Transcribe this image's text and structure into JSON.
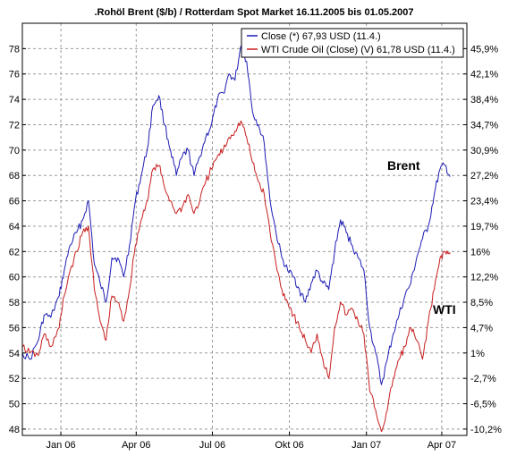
{
  "chart_data": {
    "type": "line",
    "title": ".Rohöl Brent ($/b) / Rotterdam Spot Market 16.11.2005 bis 01.05.2007",
    "xlabel": "",
    "ylabel": "",
    "x_tick_labels": [
      "Jan 06",
      "Apr 06",
      "Jul 06",
      "Okt 06",
      "Jan 07",
      "Apr 07"
    ],
    "x_ticks": [
      "2006-01-01",
      "2006-04-01",
      "2006-07-01",
      "2006-10-01",
      "2007-01-01",
      "2007-04-01"
    ],
    "x_range": [
      "2005-11-16",
      "2007-05-01"
    ],
    "ylim": [
      47.5,
      80
    ],
    "y_ticks": [
      48,
      50,
      52,
      54,
      56,
      58,
      60,
      62,
      64,
      66,
      68,
      70,
      72,
      74,
      76,
      78
    ],
    "y_tick_labels": [
      "48",
      "50",
      "52",
      "54",
      "56",
      "58",
      "60",
      "62",
      "64",
      "66",
      "68",
      "70",
      "72",
      "74",
      "76",
      "78"
    ],
    "right_axis": {
      "ticks": [
        -10.2,
        -6.5,
        -2.7,
        1,
        4.7,
        8.5,
        12.2,
        16,
        19.7,
        23.4,
        27.2,
        30.9,
        34.7,
        38.4,
        42.1,
        45.9
      ],
      "tick_labels": [
        "-10,2%",
        "-6,5%",
        "-2,7%",
        "1%",
        "4,7%",
        "8,5%",
        "12,2%",
        "16%",
        "19,7%",
        "23,4%",
        "27,2%",
        "30,9%",
        "34,7%",
        "38,4%",
        "42,1%",
        "45,9%"
      ]
    },
    "grid": true,
    "legend_position": "top-right",
    "legend": [
      "Close (*) 67,93 USD (11.4.)",
      "WTI Crude Oil (Close) (V) 61,78 USD (11.4.)"
    ],
    "annotations": [
      {
        "text": "Brent",
        "x": "2007-03-10",
        "y": 68.0
      },
      {
        "text": "WTI",
        "x": "2007-03-28",
        "y": 58.0
      }
    ],
    "series": [
      {
        "name": "Close (*)",
        "color": "#1c1cb4",
        "points": [
          [
            "2005-11-16",
            54.0
          ],
          [
            "2005-11-25",
            53.5
          ],
          [
            "2005-12-05",
            55.0
          ],
          [
            "2005-12-12",
            57.0
          ],
          [
            "2005-12-20",
            56.8
          ],
          [
            "2005-12-30",
            58.5
          ],
          [
            "2006-01-05",
            60.5
          ],
          [
            "2006-01-12",
            62.5
          ],
          [
            "2006-01-20",
            63.5
          ],
          [
            "2006-01-27",
            64.5
          ],
          [
            "2006-02-03",
            66.0
          ],
          [
            "2006-02-10",
            61.0
          ],
          [
            "2006-02-17",
            59.5
          ],
          [
            "2006-02-24",
            58.0
          ],
          [
            "2006-03-03",
            61.5
          ],
          [
            "2006-03-10",
            61.5
          ],
          [
            "2006-03-17",
            60.0
          ],
          [
            "2006-03-24",
            62.5
          ],
          [
            "2006-03-31",
            66.0
          ],
          [
            "2006-04-07",
            68.0
          ],
          [
            "2006-04-14",
            70.0
          ],
          [
            "2006-04-21",
            73.5
          ],
          [
            "2006-04-28",
            74.3
          ],
          [
            "2006-05-05",
            72.0
          ],
          [
            "2006-05-12",
            70.0
          ],
          [
            "2006-05-19",
            68.0
          ],
          [
            "2006-05-26",
            69.5
          ],
          [
            "2006-06-02",
            70.0
          ],
          [
            "2006-06-09",
            68.0
          ],
          [
            "2006-06-16",
            69.5
          ],
          [
            "2006-06-23",
            71.0
          ],
          [
            "2006-06-30",
            72.0
          ],
          [
            "2006-07-07",
            74.0
          ],
          [
            "2006-07-14",
            74.5
          ],
          [
            "2006-07-21",
            76.0
          ],
          [
            "2006-07-28",
            75.5
          ],
          [
            "2006-08-04",
            78.2
          ],
          [
            "2006-08-11",
            77.0
          ],
          [
            "2006-08-18",
            73.0
          ],
          [
            "2006-08-25",
            72.0
          ],
          [
            "2006-09-01",
            70.5
          ],
          [
            "2006-09-08",
            66.0
          ],
          [
            "2006-09-15",
            63.5
          ],
          [
            "2006-09-22",
            61.5
          ],
          [
            "2006-09-29",
            60.5
          ],
          [
            "2006-10-06",
            60.0
          ],
          [
            "2006-10-13",
            59.0
          ],
          [
            "2006-10-20",
            58.0
          ],
          [
            "2006-10-27",
            59.5
          ],
          [
            "2006-11-03",
            60.5
          ],
          [
            "2006-11-10",
            59.5
          ],
          [
            "2006-11-17",
            59.0
          ],
          [
            "2006-11-24",
            62.0
          ],
          [
            "2006-12-01",
            64.5
          ],
          [
            "2006-12-08",
            63.5
          ],
          [
            "2006-12-15",
            62.5
          ],
          [
            "2006-12-22",
            61.5
          ],
          [
            "2006-12-29",
            60.5
          ],
          [
            "2007-01-05",
            56.0
          ],
          [
            "2007-01-12",
            54.0
          ],
          [
            "2007-01-19",
            51.5
          ],
          [
            "2007-01-26",
            53.5
          ],
          [
            "2007-02-02",
            55.5
          ],
          [
            "2007-02-09",
            57.0
          ],
          [
            "2007-02-16",
            58.5
          ],
          [
            "2007-02-23",
            59.5
          ],
          [
            "2007-03-02",
            61.5
          ],
          [
            "2007-03-09",
            63.0
          ],
          [
            "2007-03-16",
            64.0
          ],
          [
            "2007-03-23",
            66.5
          ],
          [
            "2007-03-30",
            68.5
          ],
          [
            "2007-04-05",
            68.8
          ],
          [
            "2007-04-11",
            67.9
          ]
        ]
      },
      {
        "name": "WTI Crude Oil (Close) (V)",
        "color": "#c81e1e",
        "points": [
          [
            "2005-11-16",
            54.5
          ],
          [
            "2005-11-25",
            54.0
          ],
          [
            "2005-12-05",
            53.8
          ],
          [
            "2005-12-12",
            55.5
          ],
          [
            "2005-12-20",
            54.5
          ],
          [
            "2005-12-30",
            56.0
          ],
          [
            "2006-01-05",
            58.5
          ],
          [
            "2006-01-12",
            60.5
          ],
          [
            "2006-01-20",
            62.0
          ],
          [
            "2006-01-27",
            63.5
          ],
          [
            "2006-02-03",
            64.0
          ],
          [
            "2006-02-10",
            59.0
          ],
          [
            "2006-02-17",
            56.5
          ],
          [
            "2006-02-24",
            55.0
          ],
          [
            "2006-03-03",
            58.5
          ],
          [
            "2006-03-10",
            58.0
          ],
          [
            "2006-03-17",
            56.5
          ],
          [
            "2006-03-24",
            59.0
          ],
          [
            "2006-03-31",
            62.5
          ],
          [
            "2006-04-07",
            64.5
          ],
          [
            "2006-04-14",
            66.0
          ],
          [
            "2006-04-21",
            68.5
          ],
          [
            "2006-04-28",
            68.8
          ],
          [
            "2006-05-05",
            67.0
          ],
          [
            "2006-05-12",
            66.0
          ],
          [
            "2006-05-19",
            65.0
          ],
          [
            "2006-05-26",
            65.5
          ],
          [
            "2006-06-02",
            66.5
          ],
          [
            "2006-06-09",
            65.0
          ],
          [
            "2006-06-16",
            66.0
          ],
          [
            "2006-06-23",
            67.5
          ],
          [
            "2006-06-30",
            68.5
          ],
          [
            "2006-07-07",
            69.5
          ],
          [
            "2006-07-14",
            70.0
          ],
          [
            "2006-07-21",
            71.0
          ],
          [
            "2006-07-28",
            71.5
          ],
          [
            "2006-08-04",
            72.3
          ],
          [
            "2006-08-11",
            71.0
          ],
          [
            "2006-08-18",
            69.0
          ],
          [
            "2006-08-25",
            67.5
          ],
          [
            "2006-09-01",
            66.5
          ],
          [
            "2006-09-08",
            63.5
          ],
          [
            "2006-09-15",
            61.0
          ],
          [
            "2006-09-22",
            59.0
          ],
          [
            "2006-09-29",
            58.0
          ],
          [
            "2006-10-06",
            57.0
          ],
          [
            "2006-10-13",
            56.0
          ],
          [
            "2006-10-20",
            55.0
          ],
          [
            "2006-10-27",
            54.0
          ],
          [
            "2006-11-03",
            55.5
          ],
          [
            "2006-11-10",
            53.5
          ],
          [
            "2006-11-17",
            52.0
          ],
          [
            "2006-11-24",
            56.0
          ],
          [
            "2006-12-01",
            58.0
          ],
          [
            "2006-12-08",
            57.0
          ],
          [
            "2006-12-15",
            57.5
          ],
          [
            "2006-12-22",
            56.5
          ],
          [
            "2006-12-29",
            55.5
          ],
          [
            "2007-01-05",
            51.0
          ],
          [
            "2007-01-12",
            49.5
          ],
          [
            "2007-01-19",
            47.8
          ],
          [
            "2007-01-26",
            49.5
          ],
          [
            "2007-02-02",
            52.0
          ],
          [
            "2007-02-09",
            53.5
          ],
          [
            "2007-02-16",
            54.5
          ],
          [
            "2007-02-23",
            56.0
          ],
          [
            "2007-03-02",
            55.0
          ],
          [
            "2007-03-09",
            53.5
          ],
          [
            "2007-03-16",
            56.5
          ],
          [
            "2007-03-23",
            59.0
          ],
          [
            "2007-03-30",
            61.5
          ],
          [
            "2007-04-05",
            62.0
          ],
          [
            "2007-04-11",
            61.8
          ]
        ]
      }
    ]
  }
}
